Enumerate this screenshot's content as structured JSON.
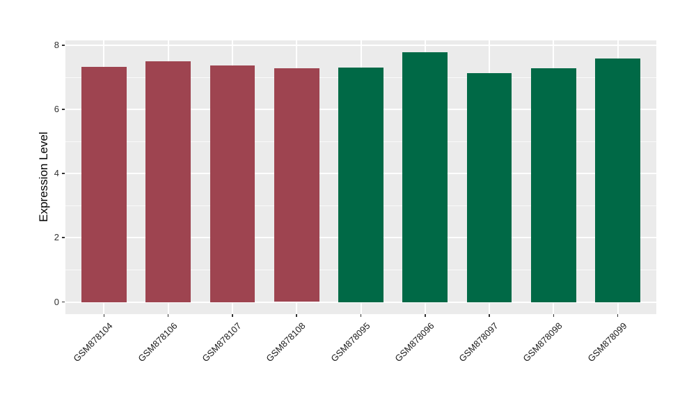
{
  "figure": {
    "background": "#FFFFFF",
    "panel_background": "#EBEBEB",
    "gridline_color": "#FFFFFF",
    "tick_color": "#333333",
    "axis_text_color": "#303030"
  },
  "chart_data": {
    "type": "bar",
    "title": "",
    "xlabel": "",
    "ylabel": "Expression Level",
    "categories": [
      "GSM878104",
      "GSM878106",
      "GSM878107",
      "GSM878108",
      "GSM878095",
      "GSM878096",
      "GSM878097",
      "GSM878098",
      "GSM878099"
    ],
    "values": [
      7.33,
      7.51,
      7.37,
      7.3,
      7.31,
      7.78,
      7.13,
      7.28,
      7.6
    ],
    "groups": [
      "group1",
      "group1",
      "group1",
      "group1",
      "group2",
      "group2",
      "group2",
      "group2",
      "group2"
    ],
    "group_colors": {
      "group1": "#9E4450",
      "group2": "#006946"
    },
    "y_ticks": [
      0,
      2,
      4,
      6,
      8
    ],
    "y_minor_ticks": [
      1,
      3,
      5,
      7
    ],
    "ylim": [
      0,
      8
    ],
    "x_tick_rotation_deg": 45,
    "grid": true,
    "legend": "none"
  }
}
